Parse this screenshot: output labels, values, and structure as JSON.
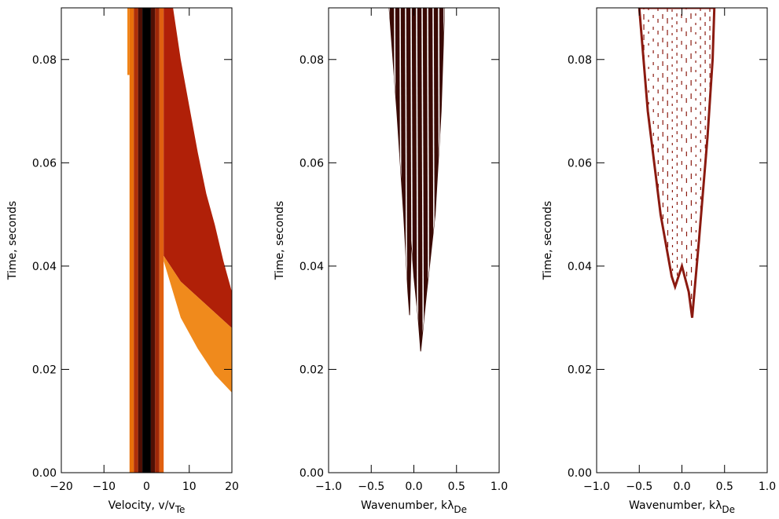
{
  "chart_data": [
    {
      "type": "region",
      "ylabel": "Time, seconds",
      "xlabel": "Velocity, v/v",
      "xlabel_sub": "Te",
      "xlim": [
        -20,
        20
      ],
      "ylim": [
        0,
        0.09
      ],
      "xticks": [
        {
          "value": -20,
          "label": "−20"
        },
        {
          "value": -10,
          "label": "−10"
        },
        0,
        10,
        20
      ],
      "yticks": [
        {
          "value": 0,
          "label": "0.00"
        },
        {
          "value": 0.02,
          "label": "0.02"
        },
        {
          "value": 0.04,
          "label": "0.04"
        },
        {
          "value": 0.06,
          "label": "0.06"
        },
        {
          "value": 0.08,
          "label": "0.08"
        }
      ],
      "regions": [
        {
          "color": "#f08010",
          "x": [
            -4.5,
            -4,
            -4,
            -4.5
          ],
          "y": [
            0.077,
            0.077,
            0.09,
            0.09
          ]
        },
        {
          "color": "#e8700a",
          "x": [
            -4,
            -3,
            -3,
            -4
          ],
          "y": [
            0,
            0,
            0.09,
            0.09
          ]
        },
        {
          "color": "#b03008",
          "x": [
            -3,
            -2,
            -2,
            -3
          ],
          "y": [
            0,
            0,
            0.09,
            0.09
          ]
        },
        {
          "color": "#501005",
          "x": [
            -2,
            -1,
            -1,
            -2
          ],
          "y": [
            0,
            0,
            0.09,
            0.09
          ]
        },
        {
          "color": "#000000",
          "x": [
            -1,
            1,
            1,
            -1
          ],
          "y": [
            0,
            0,
            0.09,
            0.09
          ]
        },
        {
          "color": "#501005",
          "x": [
            1,
            2,
            2,
            1
          ],
          "y": [
            0,
            0,
            0.09,
            0.09
          ]
        },
        {
          "color": "#a02808",
          "x": [
            2,
            3,
            3,
            2
          ],
          "y": [
            0,
            0,
            0.09,
            0.09
          ]
        },
        {
          "color": "#e06010",
          "x": [
            3,
            4,
            4,
            3
          ],
          "y": [
            0,
            0,
            0.09,
            0.09
          ]
        },
        {
          "color": "#b02008",
          "x": [
            4,
            6.2,
            8,
            10,
            12,
            14,
            16,
            18,
            20,
            20,
            16,
            12,
            8,
            4
          ],
          "y": [
            0.09,
            0.09,
            0.08,
            0.071,
            0.062,
            0.054,
            0.048,
            0.041,
            0.035,
            0.028,
            0.031,
            0.034,
            0.037,
            0.042
          ]
        },
        {
          "color": "#f08a1c",
          "x": [
            4,
            8,
            12,
            16,
            20,
            20,
            16,
            12,
            8,
            4
          ],
          "y": [
            0.042,
            0.037,
            0.034,
            0.031,
            0.028,
            0.0155,
            0.019,
            0.024,
            0.03,
            0.041
          ]
        }
      ]
    },
    {
      "type": "region",
      "ylabel": "Time, seconds",
      "xlabel": "Wavenumber, kλ",
      "xlabel_sub": "De",
      "xlim": [
        -1,
        1
      ],
      "ylim": [
        0,
        0.09
      ],
      "xticks": [
        {
          "value": -1,
          "label": "−1.0"
        },
        {
          "value": -0.5,
          "label": "−0.5"
        },
        {
          "value": 0,
          "label": "0.0"
        },
        0.5,
        {
          "value": 1,
          "label": "1.0"
        }
      ],
      "yticks": [
        {
          "value": 0,
          "label": "0.00"
        },
        {
          "value": 0.02,
          "label": "0.02"
        },
        {
          "value": 0.04,
          "label": "0.04"
        },
        {
          "value": 0.06,
          "label": "0.06"
        },
        {
          "value": 0.08,
          "label": "0.08"
        }
      ],
      "regions": [
        {
          "color": "#3a0a05",
          "x": [
            -0.29,
            -0.2,
            -0.12,
            -0.07,
            -0.05,
            -0.03,
            0,
            0.05,
            0.08,
            0.15,
            0.25,
            0.32,
            0.36
          ],
          "y": [
            0.09,
            0.07,
            0.05,
            0.035,
            0.0305,
            0.045,
            0.038,
            0.03,
            0.0235,
            0.035,
            0.05,
            0.07,
            0.09
          ]
        }
      ]
    },
    {
      "type": "region",
      "ylabel": "Time, seconds",
      "xlabel": "Wavenumber, kλ",
      "xlabel_sub": "De",
      "xlim": [
        -1,
        1
      ],
      "ylim": [
        0,
        0.09
      ],
      "xticks": [
        {
          "value": -1,
          "label": "−1.0"
        },
        {
          "value": -0.5,
          "label": "−0.5"
        },
        {
          "value": 0,
          "label": "0.0"
        },
        0.5,
        {
          "value": 1,
          "label": "1.0"
        }
      ],
      "yticks": [
        {
          "value": 0,
          "label": "0.00"
        },
        {
          "value": 0.02,
          "label": "0.02"
        },
        {
          "value": 0.04,
          "label": "0.04"
        },
        {
          "value": 0.06,
          "label": "0.06"
        },
        {
          "value": 0.08,
          "label": "0.08"
        }
      ],
      "regions": [
        {
          "color": "#8b1a10",
          "x": [
            -0.5,
            -0.4,
            -0.25,
            -0.12,
            -0.08,
            0,
            0.08,
            0.12,
            0.2,
            0.3,
            0.36,
            0.38
          ],
          "y": [
            0.09,
            0.07,
            0.05,
            0.038,
            0.036,
            0.04,
            0.035,
            0.03,
            0.045,
            0.065,
            0.08,
            0.09
          ]
        }
      ]
    }
  ]
}
